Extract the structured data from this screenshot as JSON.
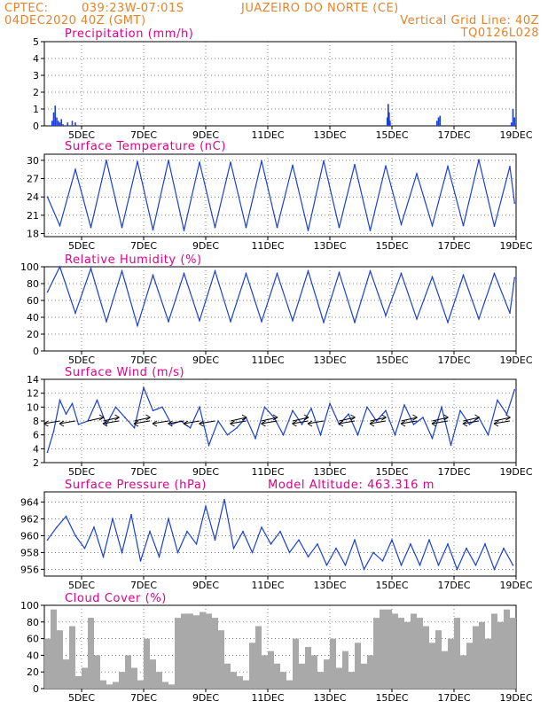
{
  "header": {
    "source": "CPTEC:",
    "coords": "039:23W-07:01S",
    "station": "JUAZEIRO DO NORTE (CE)",
    "date": "04DEC2020 40Z (GMT)",
    "grid_note": "Vertical Grid Line: 40Z",
    "code": "TQ0126L028"
  },
  "colors": {
    "header": "#e8822a",
    "title": "#e0008a",
    "line": "#1a3fd6",
    "cloud": "#a9a9a9"
  },
  "chart_data": [
    {
      "type": "bar",
      "title": "Precipitation (mm/h)",
      "x_ticks": [
        "5DEC",
        "7DEC",
        "9DEC",
        "11DEC",
        "13DEC",
        "15DEC",
        "17DEC",
        "19DEC"
      ],
      "ylim": [
        0,
        5
      ],
      "y_ticks": [
        0,
        1,
        2,
        3,
        4,
        5
      ],
      "grid": true,
      "series": [
        {
          "x": [
            4.05,
            4.1,
            4.15,
            4.2,
            4.25,
            4.3,
            4.35,
            4.4,
            4.55,
            4.7,
            4.8,
            14.85,
            14.88,
            14.91,
            14.94,
            16.45,
            16.5,
            16.55,
            18.85,
            18.9,
            18.95
          ],
          "values": [
            0.3,
            0.8,
            1.2,
            0.5,
            0.3,
            0.2,
            0.4,
            0.1,
            0.2,
            0.3,
            0.2,
            0.5,
            1.3,
            0.8,
            0.3,
            0.3,
            0.5,
            0.6,
            0.2,
            1.0,
            0.5
          ]
        }
      ]
    },
    {
      "type": "line",
      "title": "Surface Temperature (nC)",
      "x_ticks": [
        "5DEC",
        "7DEC",
        "9DEC",
        "11DEC",
        "13DEC",
        "15DEC",
        "17DEC",
        "19DEC"
      ],
      "ylim": [
        17.5,
        31
      ],
      "y_ticks": [
        18,
        21,
        24,
        27,
        30
      ],
      "grid": true,
      "series": [
        {
          "x": [
            3.9,
            4.3,
            4.8,
            5.3,
            5.8,
            6.3,
            6.8,
            7.3,
            7.8,
            8.3,
            8.8,
            9.3,
            9.8,
            10.3,
            10.8,
            11.3,
            11.8,
            12.3,
            12.8,
            13.3,
            13.8,
            14.3,
            14.8,
            15.3,
            15.8,
            16.3,
            16.8,
            17.3,
            17.8,
            18.3,
            18.8,
            18.95
          ],
          "values": [
            24,
            19.3,
            28.5,
            19.0,
            30.0,
            19.0,
            29.8,
            18.6,
            30.0,
            18.5,
            29.7,
            19.0,
            29.7,
            19.0,
            29.9,
            19.0,
            29.2,
            18.5,
            29.9,
            19.0,
            29.3,
            18.5,
            29.1,
            19.5,
            27.8,
            19.3,
            29.0,
            19.3,
            30.1,
            19.2,
            29.0,
            23
          ]
        }
      ]
    },
    {
      "type": "line",
      "title": "Relative Humidity (%)",
      "x_ticks": [
        "5DEC",
        "7DEC",
        "9DEC",
        "11DEC",
        "13DEC",
        "15DEC",
        "17DEC",
        "19DEC"
      ],
      "ylim": [
        0,
        100
      ],
      "y_ticks": [
        0,
        20,
        40,
        60,
        80,
        100
      ],
      "grid": true,
      "series": [
        {
          "x": [
            3.9,
            4.3,
            4.8,
            5.3,
            5.8,
            6.3,
            6.8,
            7.3,
            7.8,
            8.3,
            8.8,
            9.3,
            9.8,
            10.3,
            10.8,
            11.3,
            11.8,
            12.3,
            12.8,
            13.3,
            13.8,
            14.3,
            14.8,
            15.3,
            15.8,
            16.3,
            16.8,
            17.3,
            17.8,
            18.3,
            18.8,
            18.95
          ],
          "values": [
            70,
            100,
            45,
            98,
            35,
            95,
            30,
            90,
            35,
            92,
            36,
            95,
            35,
            92,
            35,
            92,
            36,
            95,
            34,
            93,
            34,
            95,
            42,
            92,
            38,
            88,
            34,
            90,
            38,
            92,
            45,
            87
          ]
        }
      ]
    },
    {
      "type": "line",
      "title": "Surface Wind (m/s)",
      "x_ticks": [
        "5DEC",
        "7DEC",
        "9DEC",
        "11DEC",
        "13DEC",
        "15DEC",
        "17DEC",
        "19DEC"
      ],
      "ylim": [
        2,
        14
      ],
      "y_ticks": [
        2,
        4,
        6,
        8,
        10,
        12,
        14
      ],
      "grid": true,
      "series": [
        {
          "x": [
            3.9,
            4.1,
            4.3,
            4.5,
            4.7,
            4.9,
            5.2,
            5.5,
            5.8,
            6.1,
            6.4,
            6.7,
            7.0,
            7.3,
            7.6,
            7.9,
            8.2,
            8.5,
            8.8,
            9.1,
            9.4,
            9.7,
            10.0,
            10.3,
            10.6,
            10.9,
            11.2,
            11.5,
            11.8,
            12.1,
            12.4,
            12.7,
            13.0,
            13.3,
            13.6,
            13.9,
            14.2,
            14.5,
            14.8,
            15.1,
            15.4,
            15.7,
            16.0,
            16.3,
            16.6,
            16.9,
            17.2,
            17.5,
            17.8,
            18.1,
            18.4,
            18.7,
            18.95
          ],
          "values": [
            3.5,
            6.5,
            11,
            9,
            10.5,
            7.5,
            8,
            11,
            7.5,
            10,
            8.5,
            7,
            12.8,
            9.5,
            10,
            7.5,
            8,
            7,
            10,
            4.5,
            8,
            6,
            7,
            8.5,
            5.5,
            10,
            8.5,
            6,
            9.5,
            7.5,
            9.8,
            6,
            10.5,
            7.5,
            9,
            6,
            10,
            8,
            9.5,
            6,
            10.3,
            7.5,
            8.5,
            5.5,
            10,
            4.5,
            9.5,
            7.5,
            8.5,
            6,
            11,
            9,
            12.5
          ]
        }
      ]
    },
    {
      "type": "line",
      "title": "Surface Pressure (hPa)",
      "subtitle": "Model Altitude: 463.316 m",
      "x_ticks": [
        "5DEC",
        "7DEC",
        "9DEC",
        "11DEC",
        "13DEC",
        "15DEC",
        "17DEC",
        "19DEC"
      ],
      "ylim": [
        955.2,
        965.2
      ],
      "y_ticks": [
        956,
        958,
        960,
        962,
        964
      ],
      "grid": true,
      "series": [
        {
          "x": [
            3.9,
            4.2,
            4.5,
            4.8,
            5.1,
            5.4,
            5.7,
            6.0,
            6.3,
            6.6,
            6.9,
            7.2,
            7.5,
            7.8,
            8.1,
            8.4,
            8.7,
            9.0,
            9.3,
            9.6,
            9.9,
            10.2,
            10.5,
            10.8,
            11.1,
            11.4,
            11.7,
            12.0,
            12.3,
            12.6,
            12.9,
            13.2,
            13.5,
            13.8,
            14.1,
            14.4,
            14.7,
            15.0,
            15.3,
            15.6,
            15.9,
            16.2,
            16.5,
            16.8,
            17.1,
            17.4,
            17.7,
            18.0,
            18.3,
            18.6,
            18.9
          ],
          "values": [
            959.5,
            961,
            962.3,
            960,
            958.5,
            961,
            957.5,
            962,
            958,
            962.5,
            957,
            960.5,
            957.5,
            962,
            958,
            960.5,
            959,
            963.5,
            959.5,
            964.3,
            958.5,
            960.5,
            958,
            961,
            959,
            960.5,
            958,
            959.5,
            957.5,
            959,
            956.5,
            958.5,
            956.5,
            959.5,
            956,
            958,
            957,
            959.5,
            956.5,
            959,
            956.5,
            959.5,
            956.5,
            959,
            956,
            958.5,
            956.5,
            959,
            956,
            958.5,
            956.5
          ]
        }
      ]
    },
    {
      "type": "bar",
      "title": "Cloud Cover (%)",
      "x_ticks": [
        "5DEC",
        "7DEC",
        "9DEC",
        "11DEC",
        "13DEC",
        "15DEC",
        "17DEC",
        "19DEC"
      ],
      "ylim": [
        0,
        100
      ],
      "y_ticks": [
        0,
        20,
        40,
        60,
        80,
        100
      ],
      "grid": true,
      "series": [
        {
          "x": [
            3.9,
            4.1,
            4.3,
            4.5,
            4.7,
            4.9,
            5.1,
            5.3,
            5.5,
            5.7,
            5.9,
            6.1,
            6.3,
            6.5,
            6.7,
            6.9,
            7.1,
            7.3,
            7.5,
            7.7,
            7.9,
            8.1,
            8.3,
            8.5,
            8.7,
            8.9,
            9.1,
            9.3,
            9.5,
            9.7,
            9.9,
            10.1,
            10.3,
            10.5,
            10.7,
            10.9,
            11.1,
            11.3,
            11.5,
            11.7,
            11.9,
            12.1,
            12.3,
            12.5,
            12.7,
            12.9,
            13.1,
            13.3,
            13.5,
            13.7,
            13.9,
            14.1,
            14.3,
            14.5,
            14.7,
            14.9,
            15.1,
            15.3,
            15.5,
            15.7,
            15.9,
            16.1,
            16.3,
            16.5,
            16.7,
            16.9,
            17.1,
            17.3,
            17.5,
            17.7,
            17.9,
            18.1,
            18.3,
            18.5,
            18.7,
            18.9
          ],
          "values": [
            60,
            95,
            70,
            35,
            75,
            15,
            25,
            85,
            40,
            10,
            5,
            8,
            20,
            40,
            25,
            10,
            60,
            35,
            20,
            8,
            5,
            85,
            90,
            90,
            88,
            92,
            90,
            85,
            70,
            30,
            20,
            15,
            10,
            55,
            75,
            40,
            45,
            30,
            20,
            10,
            60,
            30,
            50,
            40,
            20,
            35,
            60,
            25,
            45,
            20,
            55,
            30,
            40,
            85,
            95,
            95,
            90,
            85,
            80,
            90,
            85,
            75,
            55,
            70,
            45,
            60,
            85,
            40,
            55,
            75,
            80,
            60,
            90,
            80,
            95,
            85
          ]
        }
      ]
    }
  ]
}
